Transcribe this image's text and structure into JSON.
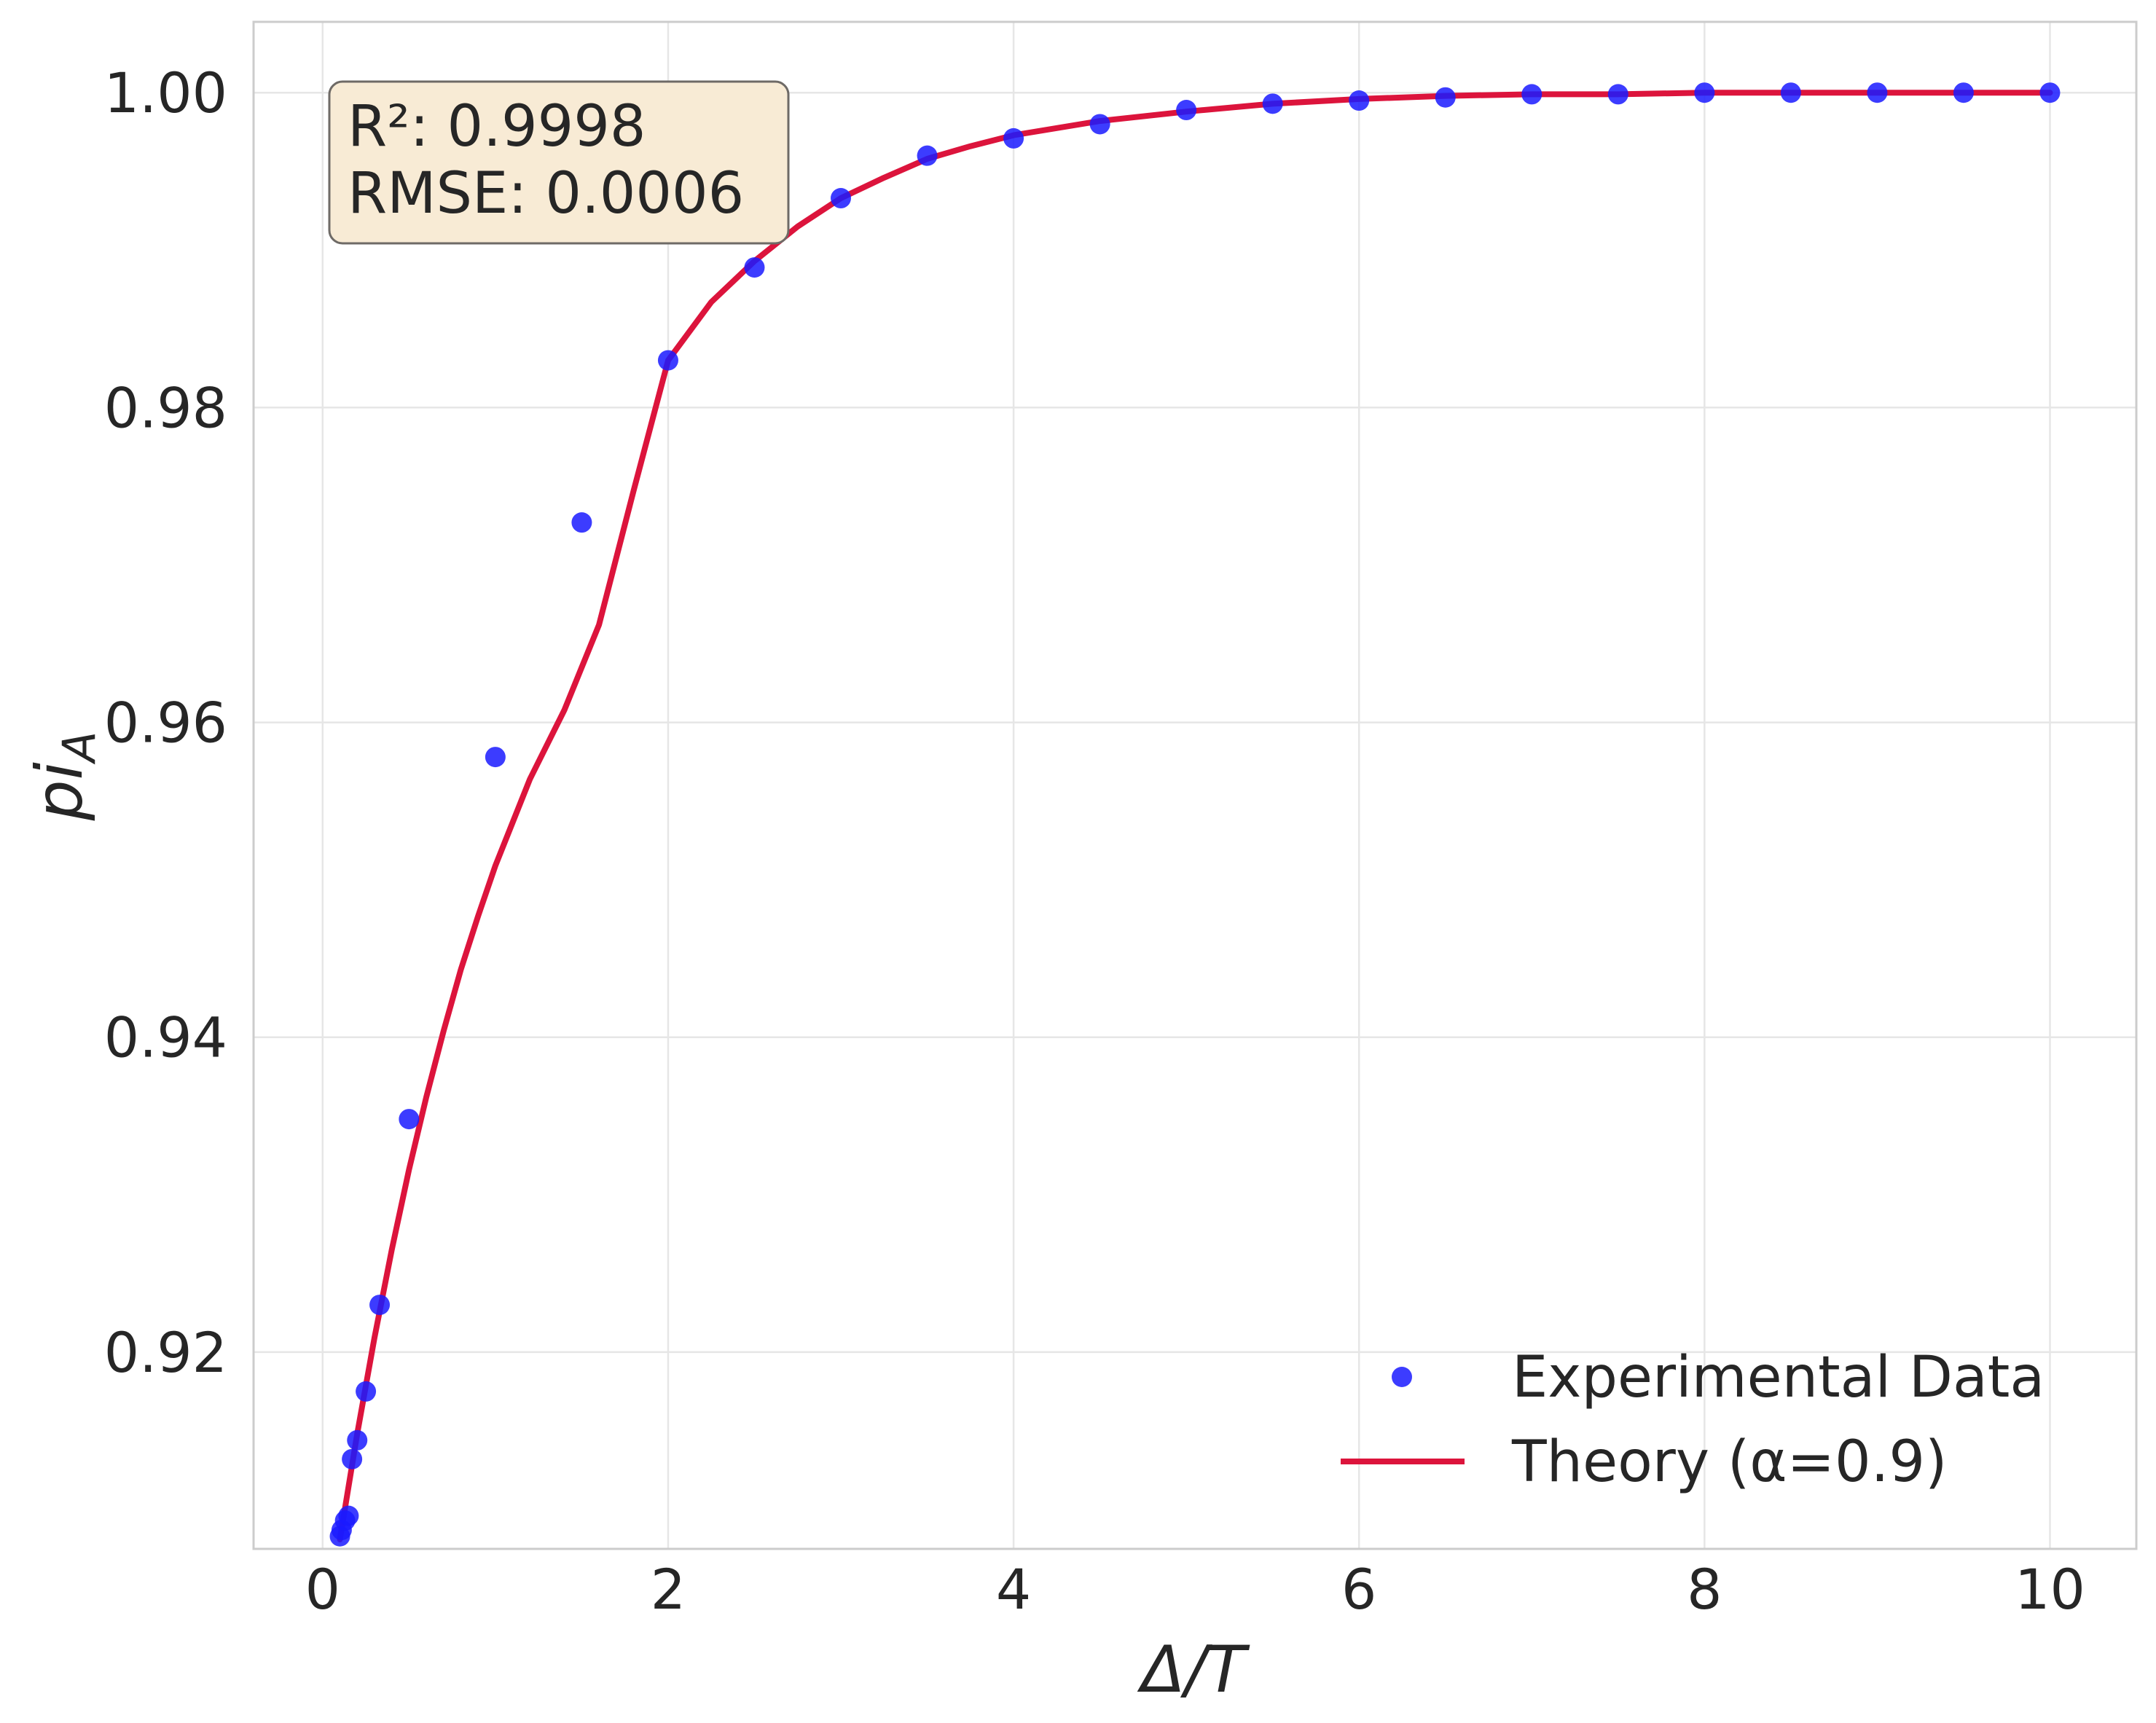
{
  "chart_data": {
    "type": "scatter",
    "title": "",
    "xlabel": "Δ/T",
    "ylabel": "pi_A",
    "ylabel_base": "pi",
    "ylabel_sub": "A",
    "xlim": [
      -0.4,
      10.5
    ],
    "ylim": [
      0.9075,
      1.0045
    ],
    "xticks": [
      0,
      2,
      4,
      6,
      8,
      10
    ],
    "xtick_labels": [
      "0",
      "2",
      "4",
      "6",
      "8",
      "10"
    ],
    "yticks": [
      0.92,
      0.94,
      0.96,
      0.98,
      1.0
    ],
    "ytick_labels": [
      "0.92",
      "0.94",
      "0.96",
      "0.98",
      "1.00"
    ],
    "grid": true,
    "legend_position": "bottom-right",
    "colors": {
      "points": "#1a1aff",
      "curve": "#dc143c",
      "grid": "#e6e6e6",
      "spine": "#cccccc",
      "stats_box_fill": "#f8ebd5",
      "stats_box_edge": "#6e6a66"
    },
    "series": [
      {
        "name": "Experimental Data",
        "kind": "scatter",
        "x": [
          0.1,
          0.11,
          0.13,
          0.15,
          0.17,
          0.2,
          0.25,
          0.33,
          0.5,
          1.0,
          1.5,
          2.0,
          2.5,
          3.0,
          3.5,
          4.0,
          4.5,
          5.0,
          5.5,
          6.0,
          6.5,
          7.0,
          7.5,
          8.0,
          8.5,
          9.0,
          9.5,
          10.0
        ],
        "y": [
          0.9083,
          0.9087,
          0.9093,
          0.9096,
          0.9132,
          0.9144,
          0.9175,
          0.923,
          0.9348,
          0.9578,
          0.9727,
          0.983,
          0.9889,
          0.9933,
          0.996,
          0.9971,
          0.998,
          0.9989,
          0.9993,
          0.9995,
          0.9997,
          0.9999,
          0.9999,
          1.0,
          1.0,
          1.0,
          1.0,
          1.0
        ]
      },
      {
        "name": "Theory (α=0.9)",
        "kind": "line",
        "x": [
          0.1,
          0.2,
          0.3,
          0.4,
          0.5,
          0.6,
          0.7,
          0.8,
          0.9,
          1.0,
          1.2,
          1.4,
          1.6,
          1.8,
          2.0,
          2.25,
          2.5,
          2.75,
          3.0,
          3.25,
          3.5,
          3.75,
          4.0,
          4.5,
          5.0,
          5.5,
          6.0,
          6.5,
          7.0,
          7.5,
          8.0,
          8.5,
          9.0,
          9.5,
          10.0
        ],
        "y": [
          0.9081,
          0.9148,
          0.9209,
          0.9265,
          0.9316,
          0.9362,
          0.9404,
          0.9443,
          0.9477,
          0.9509,
          0.9564,
          0.9608,
          0.9662,
          0.9747,
          0.983,
          0.9867,
          0.9893,
          0.9915,
          0.9933,
          0.9946,
          0.9958,
          0.9966,
          0.9973,
          0.9982,
          0.9988,
          0.9993,
          0.9996,
          0.9998,
          0.9999,
          0.9999,
          1.0,
          1.0,
          1.0,
          1.0,
          1.0
        ]
      }
    ],
    "annotations": {
      "stats_r2": "R²: 0.9998",
      "stats_rmse": "RMSE: 0.0006"
    }
  }
}
